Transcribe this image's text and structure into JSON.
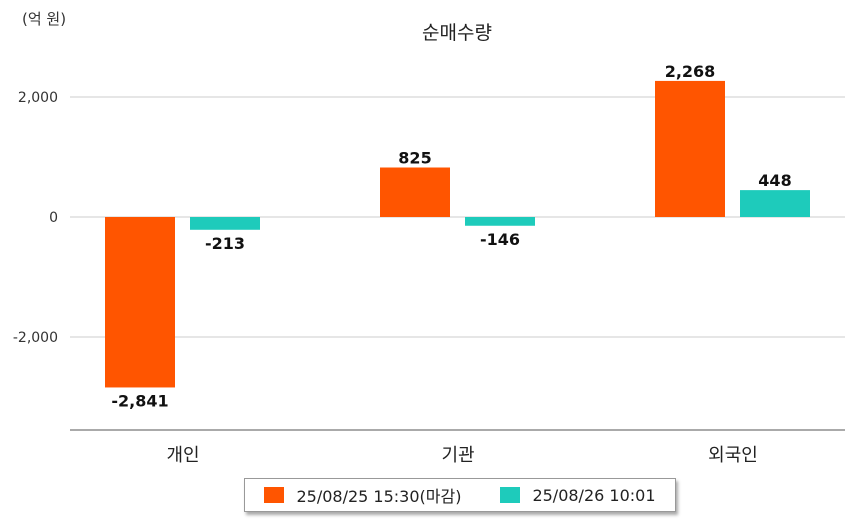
{
  "unit_label": "(억 원)",
  "chart_data": {
    "type": "bar",
    "title": "순매수량",
    "categories": [
      "개인",
      "기관",
      "외국인"
    ],
    "series": [
      {
        "name": "25/08/25 15:30(마감)",
        "color": "#ff5500",
        "values": [
          -2841,
          825,
          2268
        ],
        "labels": [
          "-2,841",
          "825",
          "2,268"
        ]
      },
      {
        "name": "25/08/26 10:01",
        "color": "#1ecbbb",
        "values": [
          -213,
          -146,
          448
        ],
        "labels": [
          "-213",
          "-146",
          "448"
        ]
      }
    ],
    "yticks": [
      2000,
      0,
      -2000
    ],
    "ytick_labels": [
      "2,000",
      "0",
      "-2,000"
    ],
    "ylim": [
      -3550,
      2000
    ],
    "grid": true,
    "legend_position": "bottom"
  }
}
